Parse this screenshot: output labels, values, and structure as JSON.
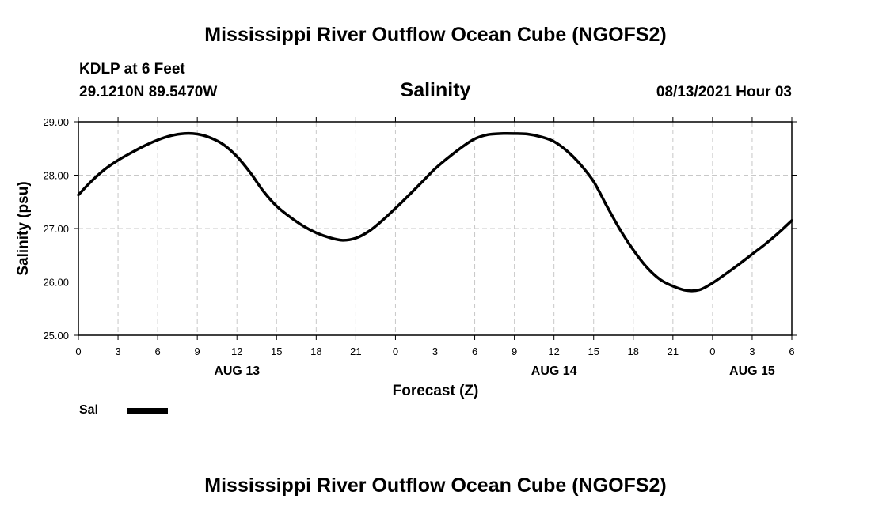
{
  "header": {
    "title": "Mississippi River Outflow Ocean Cube (NGOFS2)",
    "station": "KDLP at 6 Feet",
    "coords": "29.1210N  89.5470W",
    "run_time": "08/13/2021 Hour 03"
  },
  "footer": {
    "title": "Mississippi River Outflow Ocean Cube (NGOFS2)"
  },
  "legend": {
    "label": "Sal",
    "color": "#000000"
  },
  "chart_data": {
    "type": "line",
    "title": "Salinity",
    "xlabel": "Forecast (Z)",
    "ylabel": "Salinity (psu)",
    "ylim": [
      25.0,
      29.0
    ],
    "xlim": [
      0,
      54
    ],
    "x_unit": "hours from 08/13/2021 00Z",
    "yticks": [
      "25.00",
      "26.00",
      "27.00",
      "28.00",
      "29.00"
    ],
    "xtick_values": [
      0,
      3,
      6,
      9,
      12,
      15,
      18,
      21,
      24,
      27,
      30,
      33,
      36,
      39,
      42,
      45,
      48,
      51,
      54
    ],
    "xtick_labels": [
      "0",
      "3",
      "6",
      "9",
      "12",
      "15",
      "18",
      "21",
      "0",
      "3",
      "6",
      "9",
      "12",
      "15",
      "18",
      "21",
      "0",
      "3",
      "6"
    ],
    "date_labels": [
      {
        "x": 12,
        "label": "AUG 13"
      },
      {
        "x": 36,
        "label": "AUG 14"
      },
      {
        "x": 51,
        "label": "AUG 15"
      }
    ],
    "grid": true,
    "series": [
      {
        "name": "Sal",
        "x": [
          0,
          1,
          2,
          3,
          4,
          5,
          6,
          7,
          8,
          9,
          10,
          11,
          12,
          13,
          14,
          15,
          16,
          17,
          18,
          19,
          20,
          21,
          22,
          23,
          24,
          25,
          26,
          27,
          28,
          29,
          30,
          31,
          32,
          33,
          34,
          35,
          36,
          37,
          38,
          39,
          40,
          41,
          42,
          43,
          44,
          45,
          46,
          47,
          48,
          49,
          50,
          51,
          52,
          53,
          54
        ],
        "values": [
          27.63,
          27.89,
          28.11,
          28.28,
          28.42,
          28.55,
          28.66,
          28.74,
          28.78,
          28.77,
          28.7,
          28.57,
          28.35,
          28.05,
          27.7,
          27.42,
          27.22,
          27.05,
          26.92,
          26.83,
          26.78,
          26.82,
          26.95,
          27.15,
          27.38,
          27.62,
          27.87,
          28.12,
          28.33,
          28.52,
          28.68,
          28.76,
          28.78,
          28.78,
          28.77,
          28.72,
          28.63,
          28.45,
          28.2,
          27.88,
          27.42,
          26.98,
          26.6,
          26.28,
          26.05,
          25.92,
          25.84,
          25.85,
          25.98,
          26.15,
          26.33,
          26.52,
          26.71,
          26.92,
          27.15
        ]
      }
    ]
  }
}
